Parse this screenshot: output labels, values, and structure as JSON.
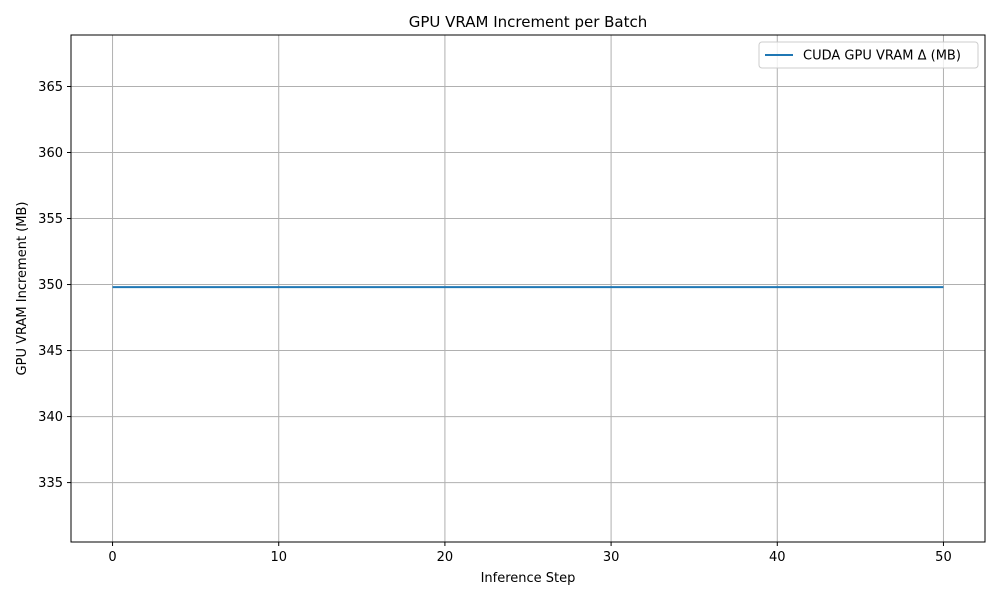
{
  "chart_data": {
    "type": "line",
    "title": "GPU VRAM Increment per Batch",
    "xlabel": "Inference Step",
    "ylabel": "GPU VRAM Increment (MB)",
    "xlim": [
      -2.5,
      52.5
    ],
    "ylim": [
      330.5,
      368.9
    ],
    "x_ticks": [
      0,
      10,
      20,
      30,
      40,
      50
    ],
    "y_ticks": [
      335,
      340,
      345,
      350,
      355,
      360,
      365
    ],
    "grid": true,
    "legend_position": "top-right",
    "series": [
      {
        "name": "CUDA GPU VRAM Δ (MB)",
        "color": "#1f77b4",
        "x": [
          0,
          50
        ],
        "y": [
          349.8,
          349.8
        ]
      }
    ]
  }
}
